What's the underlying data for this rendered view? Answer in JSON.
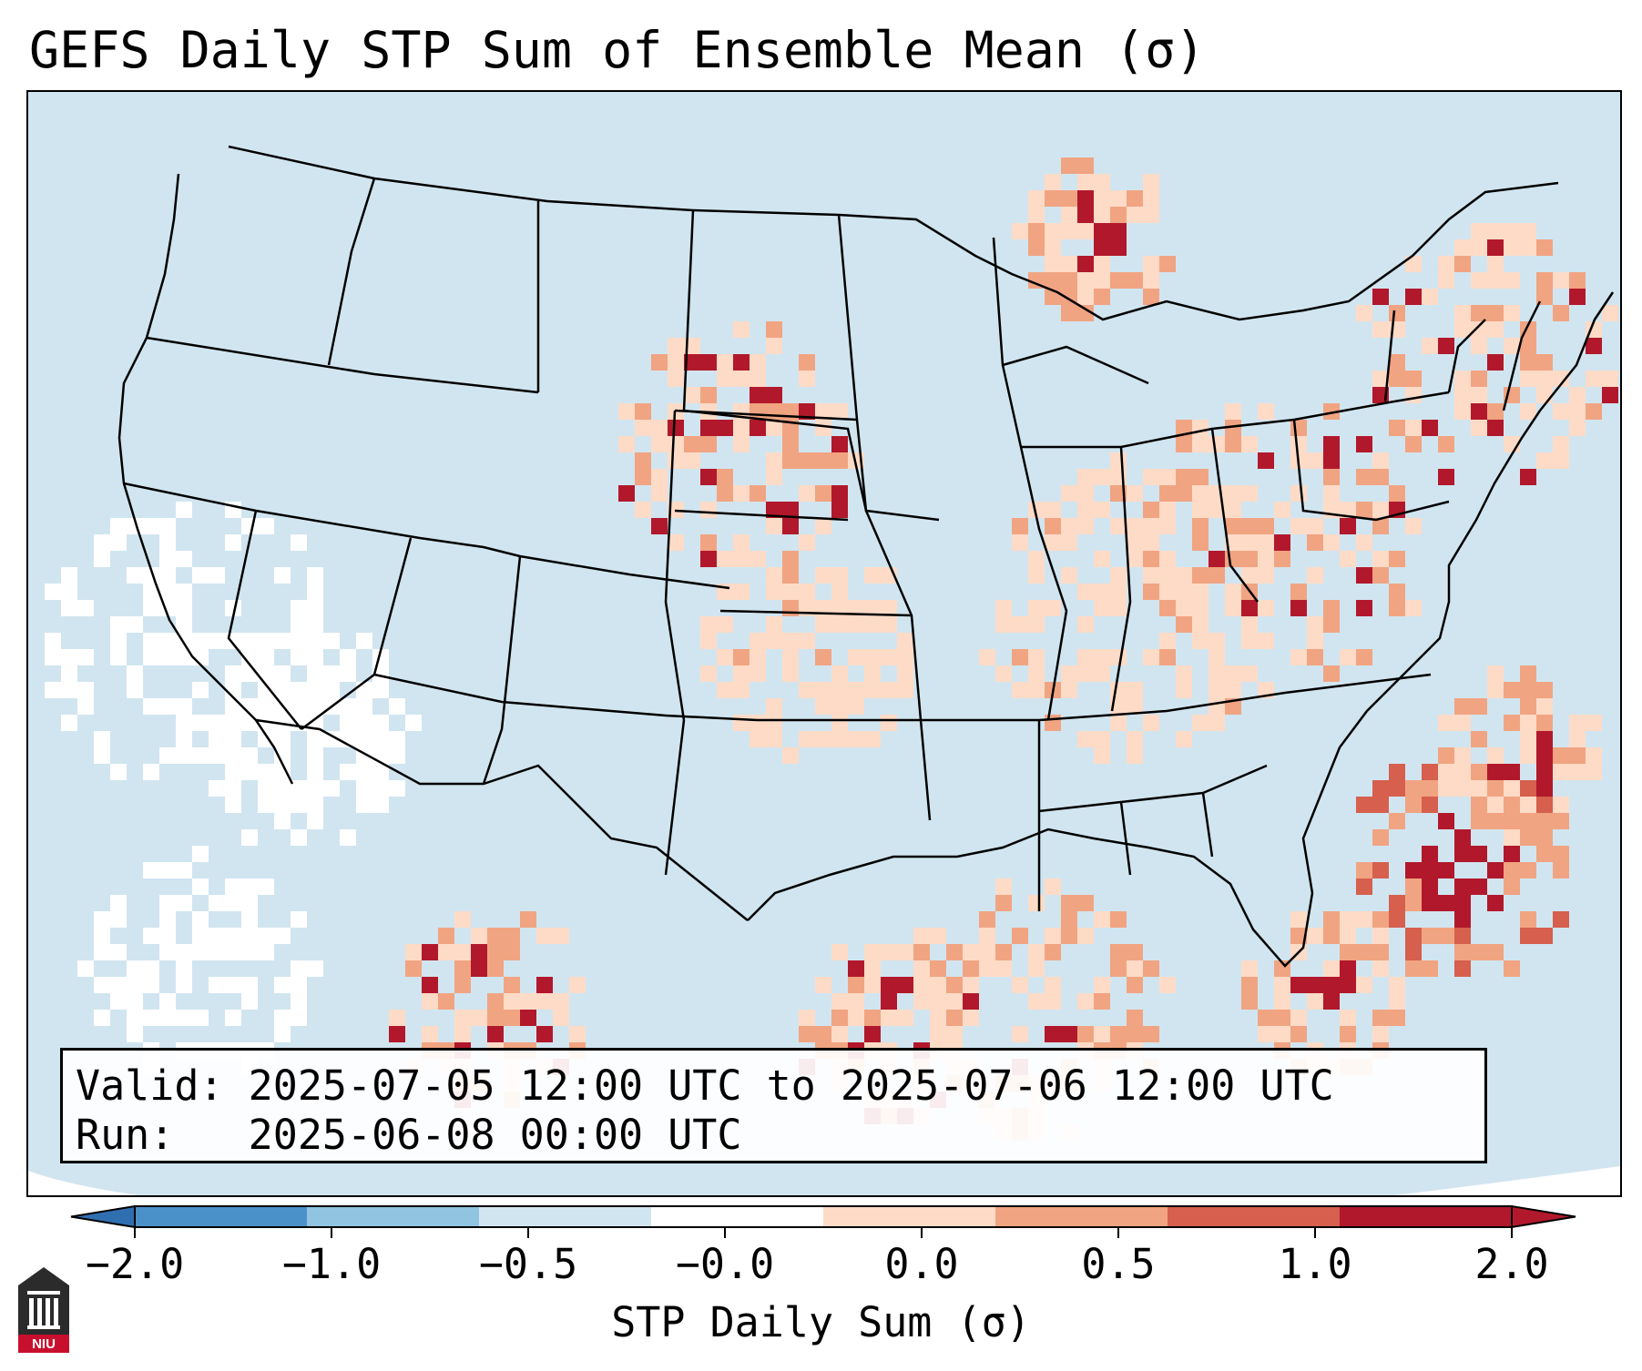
{
  "title": "GEFS Daily STP Sum of Ensemble Mean (σ)",
  "info": {
    "valid_line": "Valid: 2025-07-05 12:00 UTC to 2025-07-06 12:00 UTC",
    "run_line": "Run:   2025-06-08 00:00 UTC"
  },
  "colorbar": {
    "label": "STP Daily Sum (σ)",
    "ticks": [
      "−2.0",
      "−1.0",
      "−0.5",
      "−0.0",
      "0.0",
      "0.5",
      "1.0",
      "2.0"
    ],
    "colors": [
      "#4a91c9",
      "#91c4e1",
      "#d1e5f0",
      "#ffffff",
      "#fddbc7",
      "#f1a482",
      "#d65f4e",
      "#b2182b"
    ],
    "extend_low": "#2f6fb0",
    "extend_high": "#b2182b"
  },
  "map": {
    "ocean_color": "#d1e5f0",
    "land_color": "#d1e5f0",
    "background": "#ffffff",
    "region": "Contiguous United States"
  },
  "logo": {
    "text": "NIU",
    "color": "#c8102e"
  },
  "icons": {
    "logo": "university-logo-icon"
  }
}
